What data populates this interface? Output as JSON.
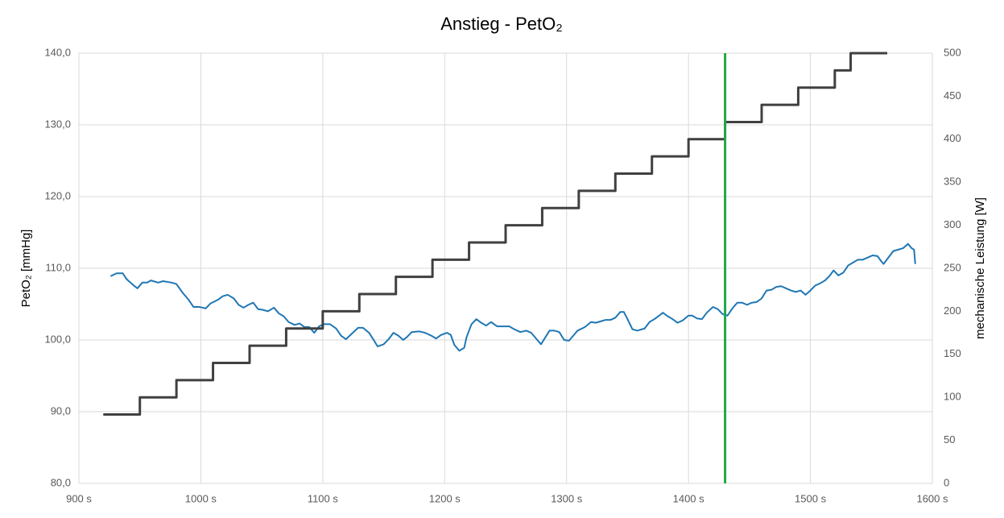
{
  "chart_data": {
    "type": "line",
    "title": "Anstieg - PetO₂",
    "y_label": "PetO₂ [mmHg]",
    "y2_label": "mechanische Leistung [W]",
    "xlim": [
      900,
      1600
    ],
    "xticks": [
      {
        "value": 900,
        "label": "900 s"
      },
      {
        "value": 1000,
        "label": "1000 s"
      },
      {
        "value": 1100,
        "label": "1100 s"
      },
      {
        "value": 1200,
        "label": "1200 s"
      },
      {
        "value": 1300,
        "label": "1300 s"
      },
      {
        "value": 1400,
        "label": "1400 s"
      },
      {
        "value": 1500,
        "label": "1500 s"
      },
      {
        "value": 1600,
        "label": "1600 s"
      }
    ],
    "ylim": [
      80,
      140
    ],
    "yticks": [
      {
        "value": 80,
        "label": "80,0"
      },
      {
        "value": 90,
        "label": "90,0"
      },
      {
        "value": 100,
        "label": "100,0"
      },
      {
        "value": 110,
        "label": "110,0"
      },
      {
        "value": 120,
        "label": "120,0"
      },
      {
        "value": 130,
        "label": "130,0"
      },
      {
        "value": 140,
        "label": "140,0"
      }
    ],
    "y2lim": [
      0,
      500
    ],
    "y2ticks": [
      0,
      50,
      100,
      150,
      200,
      250,
      300,
      350,
      400,
      450,
      500
    ],
    "grid": true,
    "vline": 1430,
    "vline_color": "#1ea84a",
    "series": [
      {
        "color": "#1f77b4",
        "axis": "y",
        "x": [
          926,
          931,
          936,
          939,
          945,
          948,
          952,
          956,
          959,
          965,
          969,
          976,
          980,
          985,
          990,
          994,
          999,
          1004,
          1008,
          1014,
          1018,
          1022,
          1027,
          1031,
          1035,
          1039,
          1043,
          1047,
          1051,
          1055,
          1060,
          1064,
          1068,
          1072,
          1077,
          1081,
          1085,
          1089,
          1093,
          1097,
          1101,
          1106,
          1111,
          1115,
          1119,
          1124,
          1129,
          1133,
          1138,
          1141,
          1145,
          1150,
          1154,
          1158,
          1162,
          1166,
          1169,
          1173,
          1179,
          1184,
          1189,
          1193,
          1197,
          1202,
          1205,
          1208,
          1212,
          1216,
          1218,
          1222,
          1226,
          1230,
          1234,
          1238,
          1243,
          1248,
          1253,
          1257,
          1262,
          1267,
          1271,
          1275,
          1279,
          1282,
          1286,
          1290,
          1294,
          1298,
          1302,
          1306,
          1309,
          1315,
          1320,
          1324,
          1328,
          1332,
          1336,
          1340,
          1344,
          1347,
          1350,
          1354,
          1358,
          1364,
          1368,
          1372,
          1376,
          1379,
          1383,
          1387,
          1391,
          1395,
          1400,
          1403,
          1407,
          1411,
          1415,
          1420,
          1424,
          1428,
          1432,
          1436,
          1440,
          1444,
          1448,
          1452,
          1456,
          1460,
          1464,
          1468,
          1472,
          1476,
          1480,
          1484,
          1488,
          1492,
          1496,
          1500,
          1504,
          1508,
          1512,
          1516,
          1519,
          1523,
          1527,
          1531,
          1535,
          1539,
          1543,
          1547,
          1551,
          1555,
          1558,
          1560,
          1564,
          1568,
          1572,
          1576,
          1580,
          1583,
          1585,
          1586
        ],
        "values": [
          108.9,
          109.3,
          109.3,
          108.5,
          107.6,
          107.2,
          108.0,
          108.0,
          108.3,
          108.0,
          108.2,
          108.0,
          107.8,
          106.6,
          105.6,
          104.6,
          104.6,
          104.4,
          105.1,
          105.6,
          106.1,
          106.3,
          105.8,
          104.9,
          104.5,
          104.9,
          105.2,
          104.3,
          104.2,
          104.0,
          104.5,
          103.7,
          103.3,
          102.5,
          102.1,
          102.3,
          101.8,
          101.8,
          101.0,
          101.9,
          102.2,
          102.2,
          101.6,
          100.6,
          100.1,
          100.9,
          101.7,
          101.7,
          101.0,
          100.2,
          99.1,
          99.4,
          100.1,
          101.0,
          100.6,
          100.0,
          100.4,
          101.1,
          101.2,
          101.0,
          100.6,
          100.2,
          100.7,
          101.0,
          100.7,
          99.3,
          98.5,
          98.9,
          100.4,
          102.2,
          102.9,
          102.4,
          102.0,
          102.5,
          101.9,
          101.9,
          101.9,
          101.5,
          101.1,
          101.3,
          101.0,
          100.2,
          99.4,
          100.2,
          101.3,
          101.3,
          101.1,
          100.0,
          99.9,
          100.7,
          101.3,
          101.8,
          102.5,
          102.4,
          102.6,
          102.8,
          102.8,
          103.1,
          103.9,
          103.9,
          102.9,
          101.5,
          101.3,
          101.6,
          102.5,
          102.9,
          103.4,
          103.8,
          103.3,
          102.9,
          102.4,
          102.7,
          103.4,
          103.4,
          103.0,
          102.9,
          103.8,
          104.6,
          104.3,
          103.6,
          103.4,
          104.4,
          105.2,
          105.2,
          104.9,
          105.2,
          105.3,
          105.8,
          106.9,
          107.0,
          107.4,
          107.5,
          107.2,
          106.9,
          106.7,
          106.9,
          106.3,
          106.9,
          107.6,
          107.9,
          108.3,
          109.0,
          109.7,
          109.0,
          109.4,
          110.4,
          110.8,
          111.2,
          111.2,
          111.5,
          111.8,
          111.7,
          111.0,
          110.6,
          111.5,
          112.4,
          112.6,
          112.8,
          113.4,
          112.8,
          112.6,
          110.6
        ]
      },
      {
        "color": "#404040",
        "axis": "y2",
        "x": [
          920,
          950,
          950,
          980,
          980,
          1010,
          1010,
          1040,
          1040,
          1070,
          1070,
          1100,
          1100,
          1130,
          1130,
          1160,
          1160,
          1190,
          1190,
          1220,
          1220,
          1250,
          1250,
          1280,
          1280,
          1310,
          1310,
          1340,
          1340,
          1370,
          1370,
          1400,
          1400,
          1430,
          1430,
          1460,
          1460,
          1490,
          1490,
          1520,
          1520,
          1533,
          1533,
          1563
        ],
        "values": [
          80,
          80,
          100,
          100,
          120,
          120,
          140,
          140,
          160,
          160,
          180,
          180,
          200,
          200,
          220,
          220,
          240,
          240,
          260,
          260,
          280,
          280,
          300,
          300,
          320,
          320,
          340,
          340,
          360,
          360,
          380,
          380,
          400,
          400,
          420,
          420,
          440,
          440,
          460,
          460,
          480,
          480,
          500,
          500
        ]
      }
    ]
  }
}
